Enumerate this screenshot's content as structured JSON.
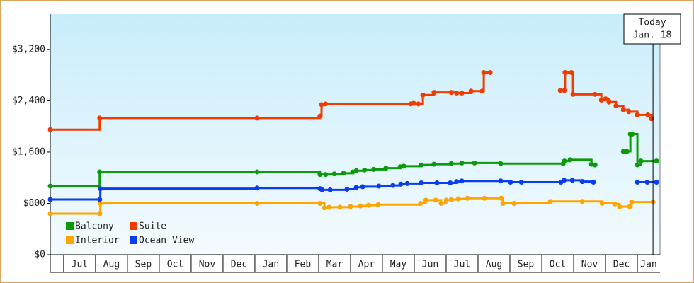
{
  "chart_data": {
    "type": "step-line",
    "xlim": [
      -0.42,
      18.71
    ],
    "xticks": [
      {
        "value": 0,
        "label": "Jul"
      },
      {
        "value": 1,
        "label": "Aug"
      },
      {
        "value": 2,
        "label": "Sep"
      },
      {
        "value": 3,
        "label": "Oct"
      },
      {
        "value": 4,
        "label": "Nov"
      },
      {
        "value": 5,
        "label": "Dec"
      },
      {
        "value": 6,
        "label": "Jan"
      },
      {
        "value": 7,
        "label": "Feb"
      },
      {
        "value": 8,
        "label": "Mar"
      },
      {
        "value": 9,
        "label": "Apr"
      },
      {
        "value": 10,
        "label": "May"
      },
      {
        "value": 11,
        "label": "Jun"
      },
      {
        "value": 12,
        "label": "Jul"
      },
      {
        "value": 13,
        "label": "Aug"
      },
      {
        "value": 14,
        "label": "Sep"
      },
      {
        "value": 15,
        "label": "Oct"
      },
      {
        "value": 16,
        "label": "Nov"
      },
      {
        "value": 17,
        "label": "Dec"
      },
      {
        "value": 18,
        "label": "Jan"
      }
    ],
    "ylim": [
      0,
      3750
    ],
    "yticks": [
      {
        "value": 0,
        "label": "$0"
      },
      {
        "value": 800,
        "label": "$800"
      },
      {
        "value": 1600,
        "label": "$1,600"
      },
      {
        "value": 2400,
        "label": "$2,400"
      },
      {
        "value": 3200,
        "label": "$3,200"
      }
    ],
    "legend": "lower left",
    "today": {
      "x": 18.49,
      "label": [
        "Today",
        "Jan. 18"
      ]
    },
    "series": [
      {
        "name": "Balcony",
        "color": "#0a9a0a",
        "x": [
          -0.42,
          1.13,
          6.07,
          8.04,
          8.22,
          8.49,
          8.78,
          9.07,
          9.18,
          9.44,
          9.73,
          10.11,
          10.56,
          10.67,
          11.22,
          11.62,
          12.16,
          12.49,
          12.89,
          13.71,
          15.67,
          15.71,
          15.89,
          16.56,
          16.67,
          17.1,
          17.56,
          17.67,
          17.78,
          17.84,
          18.0,
          18.11,
          18.6
        ],
        "values": [
          1070,
          1290,
          1290,
          1250,
          1250,
          1260,
          1270,
          1290,
          1310,
          1320,
          1330,
          1350,
          1370,
          1380,
          1400,
          1410,
          1420,
          1430,
          1430,
          1420,
          1420,
          1460,
          1480,
          1410,
          1400,
          null,
          1610,
          1610,
          1880,
          1880,
          1400,
          1460,
          1460
        ]
      },
      {
        "name": "Suite",
        "color": "#f03c00",
        "x": [
          -0.42,
          1.13,
          6.07,
          8.04,
          8.09,
          8.22,
          10.89,
          10.98,
          11.13,
          11.27,
          11.62,
          12.16,
          12.33,
          12.49,
          12.78,
          13.13,
          13.18,
          13.38,
          14.5,
          15.58,
          15.71,
          15.73,
          15.93,
          15.98,
          16.67,
          16.87,
          17.0,
          17.11,
          17.33,
          17.56,
          17.73,
          18.0,
          18.33,
          18.44
        ],
        "values": [
          1950,
          2130,
          2130,
          2160,
          2340,
          2350,
          2350,
          2360,
          2350,
          2490,
          2530,
          2530,
          2520,
          2520,
          2550,
          2550,
          2840,
          2840,
          null,
          2560,
          2560,
          2840,
          2840,
          2500,
          2500,
          2410,
          2430,
          2380,
          2320,
          2260,
          2230,
          2180,
          2180,
          2120
        ]
      },
      {
        "name": "Interior",
        "color": "#ffa500",
        "x": [
          -0.42,
          1.13,
          1.15,
          6.07,
          8.04,
          8.18,
          8.33,
          8.67,
          9.0,
          9.31,
          9.56,
          9.87,
          11.2,
          11.36,
          11.67,
          11.84,
          12.0,
          12.16,
          12.38,
          12.67,
          13.2,
          13.73,
          13.78,
          14.13,
          15.27,
          16.27,
          16.89,
          17.29,
          17.44,
          17.76,
          17.82,
          18.49
        ],
        "values": [
          640,
          640,
          800,
          800,
          800,
          730,
          740,
          740,
          750,
          760,
          770,
          780,
          800,
          850,
          850,
          800,
          850,
          860,
          870,
          880,
          880,
          880,
          800,
          800,
          830,
          830,
          800,
          790,
          750,
          750,
          820,
          820
        ]
      },
      {
        "name": "Ocean View",
        "color": "#0a3cf0",
        "x": [
          -0.42,
          1.13,
          1.15,
          6.07,
          8.04,
          8.11,
          8.36,
          8.89,
          9.18,
          9.38,
          9.89,
          10.33,
          10.58,
          10.78,
          11.22,
          11.71,
          12.13,
          12.33,
          12.49,
          13.71,
          14.02,
          14.36,
          15.6,
          15.7,
          15.96,
          16.27,
          16.62,
          17.3,
          18.0,
          18.31,
          18.6
        ],
        "values": [
          860,
          860,
          1030,
          1040,
          1030,
          1010,
          1010,
          1020,
          1050,
          1060,
          1070,
          1080,
          1100,
          1110,
          1120,
          1120,
          1120,
          1140,
          1150,
          1150,
          1130,
          1130,
          1130,
          1160,
          1160,
          1140,
          1130,
          null,
          1130,
          1130,
          1130
        ]
      }
    ]
  }
}
